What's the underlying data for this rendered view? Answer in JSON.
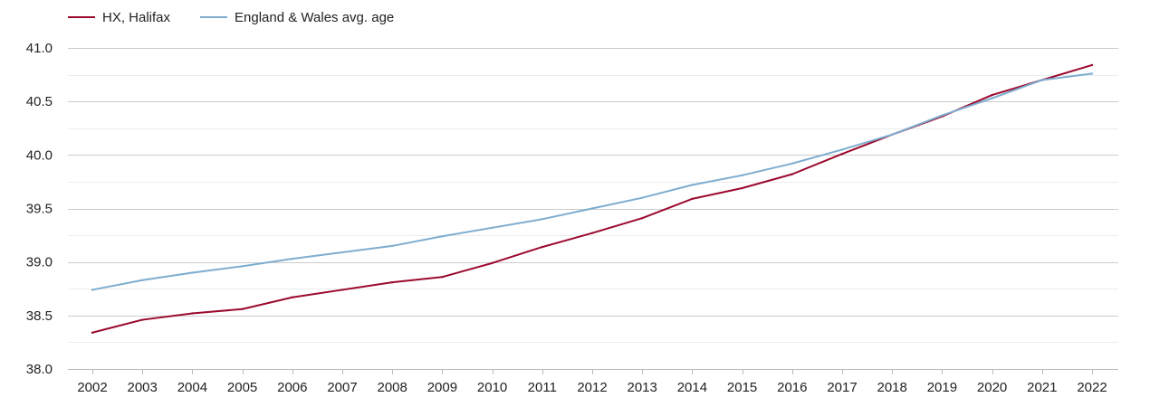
{
  "chart_data": {
    "type": "line",
    "title": "",
    "xlabel": "",
    "ylabel": "",
    "x": [
      2002,
      2003,
      2004,
      2005,
      2006,
      2007,
      2008,
      2009,
      2010,
      2011,
      2012,
      2013,
      2014,
      2015,
      2016,
      2017,
      2018,
      2019,
      2020,
      2021,
      2022
    ],
    "y_ticks": [
      "38.0",
      "38.5",
      "39.0",
      "39.5",
      "40.0",
      "40.5",
      "41.0"
    ],
    "ylim": [
      38.0,
      41.0
    ],
    "grid": true,
    "legend_position": "top-left",
    "series": [
      {
        "name": "HX, Halifax",
        "color": "#9b0a2d",
        "values": [
          38.34,
          38.46,
          38.52,
          38.56,
          38.67,
          38.74,
          38.81,
          38.86,
          38.99,
          39.14,
          39.27,
          39.41,
          39.59,
          39.69,
          39.82,
          40.01,
          40.19,
          40.36,
          40.56,
          40.7,
          40.84
        ]
      },
      {
        "name": "England & Wales avg. age",
        "color": "#7eadd0",
        "values": [
          38.74,
          38.83,
          38.9,
          38.96,
          39.03,
          39.09,
          39.15,
          39.24,
          39.32,
          39.4,
          39.5,
          39.6,
          39.72,
          39.81,
          39.92,
          40.05,
          40.19,
          40.37,
          40.53,
          40.7,
          40.76
        ]
      }
    ]
  }
}
